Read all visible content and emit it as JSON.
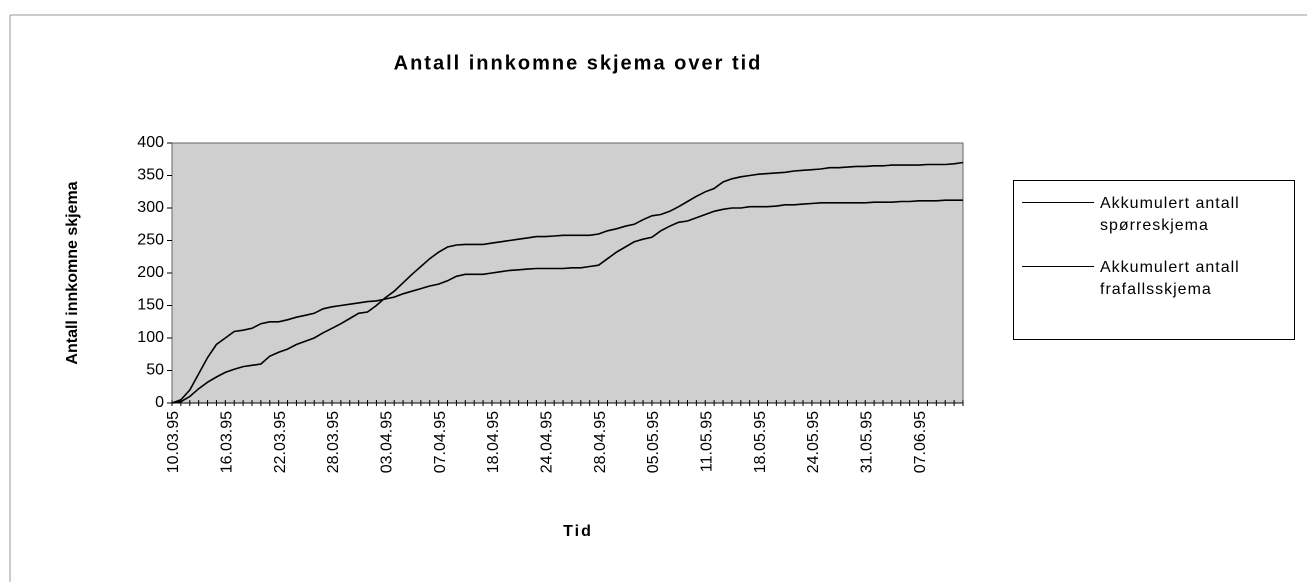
{
  "chart_data": {
    "type": "line",
    "title": "Antall innkomne skjema over tid",
    "x_label": "Tid",
    "y_label": "Antall innkomne skjema",
    "categories": [
      "10.03.95",
      null,
      null,
      null,
      null,
      null,
      "16.03.95",
      null,
      null,
      null,
      null,
      null,
      "22.03.95",
      null,
      null,
      null,
      null,
      null,
      "28.03.95",
      null,
      null,
      null,
      null,
      null,
      "03.04.95",
      null,
      null,
      null,
      null,
      null,
      "07.04.95",
      null,
      null,
      null,
      null,
      null,
      "18.04.95",
      null,
      null,
      null,
      null,
      null,
      "24.04.95",
      null,
      null,
      null,
      null,
      null,
      "28.04.95",
      null,
      null,
      null,
      null,
      null,
      "05.05.95",
      null,
      null,
      null,
      null,
      null,
      "11.05.95",
      null,
      null,
      null,
      null,
      null,
      "18.05.95",
      null,
      null,
      null,
      null,
      null,
      "24.05.95",
      null,
      null,
      null,
      null,
      null,
      "31.05.95",
      null,
      null,
      null,
      null,
      null,
      "07.06.95",
      null,
      null,
      null,
      null,
      null
    ],
    "series": [
      {
        "name": "Akkumulert antall spørreskjema",
        "color": "#000000",
        "values": [
          0,
          2,
          10,
          22,
          32,
          40,
          47,
          52,
          56,
          58,
          60,
          72,
          78,
          83,
          90,
          95,
          100,
          108,
          115,
          122,
          130,
          138,
          140,
          150,
          162,
          172,
          185,
          198,
          210,
          222,
          232,
          240,
          243,
          244,
          244,
          244,
          246,
          248,
          250,
          252,
          254,
          256,
          256,
          257,
          258,
          258,
          258,
          258,
          260,
          265,
          268,
          272,
          275,
          282,
          288,
          290,
          295,
          302,
          310,
          318,
          325,
          330,
          340,
          345,
          348,
          350,
          352,
          353,
          354,
          355,
          357,
          358,
          359,
          360,
          362,
          362,
          363,
          364,
          364,
          365,
          365,
          366,
          366,
          366,
          366,
          367,
          367,
          367,
          368,
          370
        ]
      },
      {
        "name": "Akkumulert antall frafallsskjema",
        "color": "#000000",
        "values": [
          0,
          5,
          20,
          45,
          70,
          90,
          100,
          110,
          112,
          115,
          122,
          125,
          125,
          128,
          132,
          135,
          138,
          145,
          148,
          150,
          152,
          154,
          156,
          157,
          160,
          163,
          168,
          172,
          176,
          180,
          183,
          188,
          195,
          198,
          198,
          198,
          200,
          202,
          204,
          205,
          206,
          207,
          207,
          207,
          207,
          208,
          208,
          210,
          212,
          222,
          232,
          240,
          248,
          252,
          255,
          265,
          272,
          278,
          280,
          285,
          290,
          295,
          298,
          300,
          300,
          302,
          302,
          302,
          303,
          305,
          305,
          306,
          307,
          308,
          308,
          308,
          308,
          308,
          308,
          309,
          309,
          309,
          310,
          310,
          311,
          311,
          311,
          312,
          312,
          312
        ]
      }
    ],
    "ylim": [
      0,
      400
    ],
    "yticks": [
      0,
      50,
      100,
      150,
      200,
      250,
      300,
      350,
      400
    ],
    "grid": false,
    "legend": "right"
  }
}
